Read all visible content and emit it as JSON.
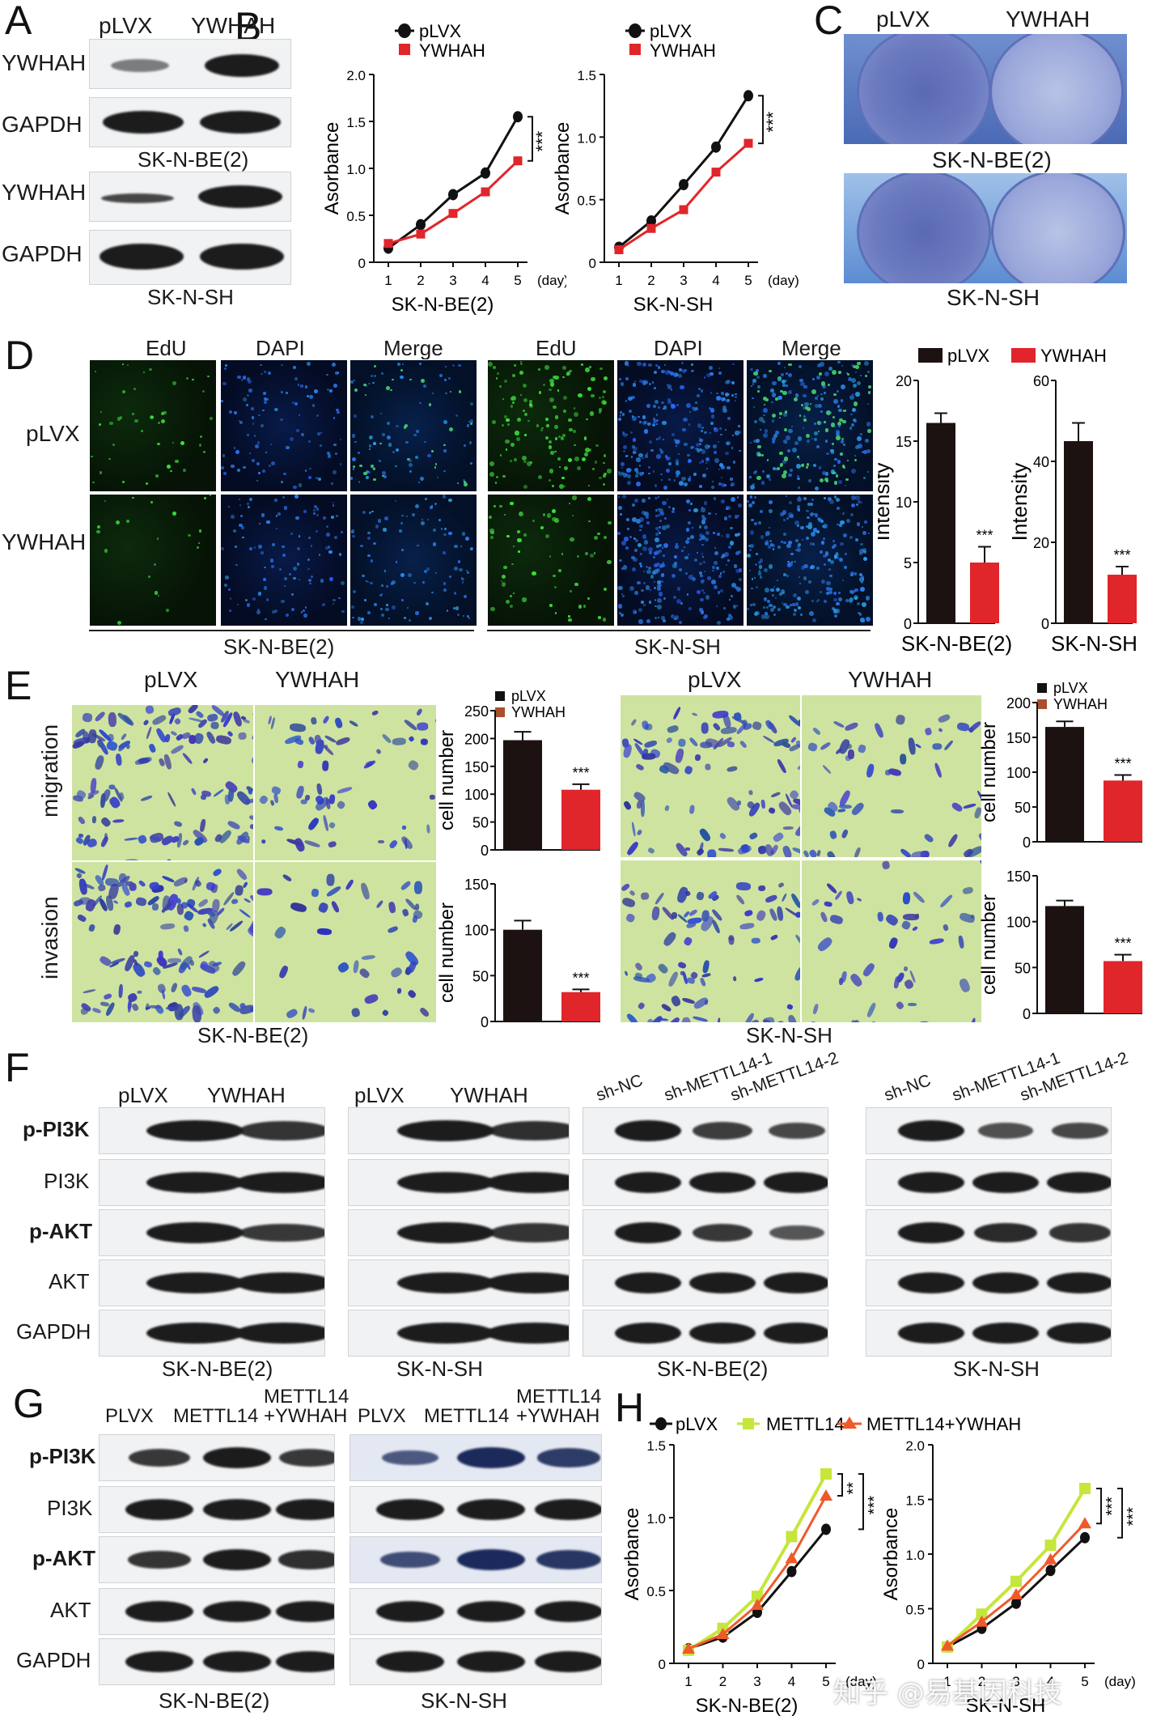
{
  "panels": {
    "A": "A",
    "B": "B",
    "C": "C",
    "D": "D",
    "E": "E",
    "F": "F",
    "G": "G",
    "H": "H"
  },
  "panel_a": {
    "col1": "pLVX",
    "col2": "YWHAH",
    "rows": [
      "YWHAH",
      "GAPDH",
      "YWHAH",
      "GAPDH"
    ],
    "cell1": "SK-N-BE(2)",
    "cell2": "SK-N-SH"
  },
  "panel_c": {
    "col1": "pLVX",
    "col2": "YWHAH",
    "cell1": "SK-N-BE(2)",
    "cell2": "SK-N-SH"
  },
  "panel_d": {
    "channels": [
      "EdU",
      "DAPI",
      "Merge"
    ],
    "rows": [
      "pLVX",
      "YWHAH"
    ],
    "cell1": "SK-N-BE(2)",
    "cell2": "SK-N-SH"
  },
  "panel_e": {
    "cols": [
      "pLVX",
      "YWHAH"
    ],
    "rows": [
      "migration",
      "invasion"
    ],
    "cell1": "SK-N-BE(2)",
    "cell2": "SK-N-SH"
  },
  "panel_f": {
    "rows": [
      "p-PI3K",
      "PI3K",
      "p-AKT",
      "AKT",
      "GAPDH"
    ],
    "groups": [
      {
        "labels": [
          "pLVX",
          "YWHAH"
        ],
        "cell": "SK-N-BE(2)"
      },
      {
        "labels": [
          "pLVX",
          "YWHAH"
        ],
        "cell": "SK-N-SH"
      },
      {
        "labels": [
          "sh-NC",
          "sh-METTL14-1",
          "sh-METTL14-2"
        ],
        "cell": "SK-N-BE(2)"
      },
      {
        "labels": [
          "sh-NC",
          "sh-METTL14-1",
          "sh-METTL14-2"
        ],
        "cell": "SK-N-SH"
      }
    ]
  },
  "panel_g": {
    "rows": [
      "p-PI3K",
      "PI3K",
      "p-AKT",
      "AKT",
      "GAPDH"
    ],
    "labels": [
      "PLVX",
      "METTL14",
      "METTL14",
      "+YWHAH"
    ],
    "cell1": "SK-N-BE(2)",
    "cell2": "SK-N-SH"
  },
  "watermark": "知乎 @易基因科技",
  "colors": {
    "black": "#111111",
    "red": "#e0252b",
    "green": "#c5e63a",
    "orange": "#ef5a2a"
  },
  "chart_data": [
    {
      "id": "B1",
      "type": "line",
      "title": "",
      "xlabel": "SK-N-BE(2)",
      "x_unit": "(day)",
      "ylabel": "Asorbance",
      "x": [
        1,
        2,
        3,
        4,
        5
      ],
      "ylim": [
        0,
        2.0
      ],
      "yticks": [
        "0",
        "0.5",
        "1.0",
        "1.5",
        "2.0"
      ],
      "series": [
        {
          "name": "pLVX",
          "values": [
            0.15,
            0.4,
            0.72,
            0.95,
            1.55
          ]
        },
        {
          "name": "YWHAH",
          "values": [
            0.2,
            0.3,
            0.52,
            0.75,
            1.08
          ]
        }
      ],
      "annotation": "***"
    },
    {
      "id": "B2",
      "type": "line",
      "title": "",
      "xlabel": "SK-N-SH",
      "x_unit": "(day)",
      "ylabel": "Asorbance",
      "x": [
        1,
        2,
        3,
        4,
        5
      ],
      "ylim": [
        0,
        1.5
      ],
      "yticks": [
        "0",
        "0.5",
        "1.0",
        "1.5"
      ],
      "series": [
        {
          "name": "pLVX",
          "values": [
            0.12,
            0.33,
            0.62,
            0.92,
            1.33
          ]
        },
        {
          "name": "YWHAH",
          "values": [
            0.1,
            0.27,
            0.42,
            0.72,
            0.95
          ]
        }
      ],
      "annotation": "***"
    },
    {
      "id": "D1",
      "type": "bar",
      "xlabel": "SK-N-BE(2)",
      "ylabel": "Intensity",
      "ylim": [
        0,
        20
      ],
      "yticks": [
        "0",
        "5",
        "10",
        "15",
        "20"
      ],
      "categories": [
        "pLVX",
        "YWHAH"
      ],
      "values": [
        16.5,
        5.0
      ],
      "errors": [
        0.8,
        1.3
      ],
      "annotation": "***"
    },
    {
      "id": "D2",
      "type": "bar",
      "xlabel": "SK-N-SH",
      "ylabel": "Intensity",
      "ylim": [
        0,
        60
      ],
      "yticks": [
        "0",
        "20",
        "40",
        "60"
      ],
      "categories": [
        "pLVX",
        "YWHAH"
      ],
      "values": [
        45,
        12
      ],
      "errors": [
        4.5,
        2
      ],
      "annotation": "***"
    },
    {
      "id": "E1",
      "type": "bar",
      "xlabel": "",
      "ylabel": "cell number",
      "ylim": [
        0,
        250
      ],
      "yticks": [
        "0",
        "50",
        "100",
        "150",
        "200",
        "250"
      ],
      "categories": [
        "pLVX",
        "YWHAH"
      ],
      "values": [
        197,
        108
      ],
      "errors": [
        15,
        10
      ],
      "annotation": "***"
    },
    {
      "id": "E2",
      "type": "bar",
      "xlabel": "",
      "ylabel": "cell number",
      "ylim": [
        0,
        150
      ],
      "yticks": [
        "0",
        "50",
        "100",
        "150"
      ],
      "categories": [
        "pLVX",
        "YWHAH"
      ],
      "values": [
        100,
        32
      ],
      "errors": [
        10,
        3
      ],
      "annotation": "***"
    },
    {
      "id": "E3",
      "type": "bar",
      "xlabel": "",
      "ylabel": "cell number",
      "ylim": [
        0,
        200
      ],
      "yticks": [
        "0",
        "50",
        "100",
        "150",
        "200"
      ],
      "categories": [
        "pLVX",
        "YWHAH"
      ],
      "values": [
        165,
        88
      ],
      "errors": [
        8,
        8
      ],
      "annotation": "***"
    },
    {
      "id": "E4",
      "type": "bar",
      "xlabel": "",
      "ylabel": "cell number",
      "ylim": [
        0,
        150
      ],
      "yticks": [
        "0",
        "50",
        "100",
        "150"
      ],
      "categories": [
        "pLVX",
        "YWHAH"
      ],
      "values": [
        117,
        57
      ],
      "errors": [
        6,
        7
      ],
      "annotation": "***"
    },
    {
      "id": "H1",
      "type": "line",
      "xlabel": "SK-N-BE(2)",
      "x_unit": "(day)",
      "ylabel": "Asorbance",
      "x": [
        1,
        2,
        3,
        4,
        5
      ],
      "ylim": [
        0,
        1.5
      ],
      "yticks": [
        "0",
        "0.5",
        "1.0",
        "1.5"
      ],
      "series": [
        {
          "name": "pLVX",
          "values": [
            0.1,
            0.18,
            0.35,
            0.63,
            0.92
          ]
        },
        {
          "name": "METTL14",
          "values": [
            0.09,
            0.24,
            0.46,
            0.87,
            1.3
          ]
        },
        {
          "name": "METTL14+YWHAH",
          "values": [
            0.1,
            0.2,
            0.4,
            0.72,
            1.15
          ]
        }
      ],
      "annotations": [
        "**",
        "***"
      ]
    },
    {
      "id": "H2",
      "type": "line",
      "xlabel": "SK-N-SH",
      "x_unit": "(day)",
      "ylabel": "Asorbance",
      "x": [
        1,
        2,
        3,
        4,
        5
      ],
      "ylim": [
        0,
        2.0
      ],
      "yticks": [
        "0",
        "0.5",
        "1.0",
        "1.5",
        "2.0"
      ],
      "series": [
        {
          "name": "pLVX",
          "values": [
            0.15,
            0.32,
            0.55,
            0.85,
            1.15
          ]
        },
        {
          "name": "METTL14",
          "values": [
            0.15,
            0.45,
            0.75,
            1.08,
            1.6
          ]
        },
        {
          "name": "METTL14+YWHAH",
          "values": [
            0.16,
            0.38,
            0.63,
            0.95,
            1.28
          ]
        }
      ],
      "annotations": [
        "***",
        "***"
      ]
    }
  ]
}
